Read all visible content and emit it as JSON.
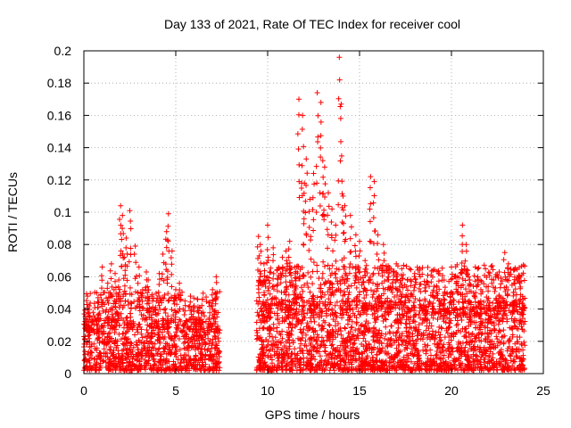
{
  "chart_data": {
    "type": "scatter",
    "title": "Day 133 of 2021, Rate Of TEC Index for receiver cool",
    "xlabel": "GPS time / hours",
    "ylabel": "ROTI / TECUs",
    "xlim": [
      0,
      25
    ],
    "ylim": [
      0,
      0.2
    ],
    "x_ticks": [
      0,
      5,
      10,
      15,
      20,
      25
    ],
    "y_ticks": [
      0,
      0.02,
      0.04,
      0.06,
      0.08,
      0.1,
      0.12,
      0.14,
      0.16,
      0.18,
      0.2
    ],
    "x_tick_labels": [
      "0",
      "5",
      "10",
      "15",
      "20",
      "25"
    ],
    "y_tick_labels": [
      "0",
      "0.02",
      "0.04",
      "0.06",
      "0.08",
      "0.1",
      "0.12",
      "0.14",
      "0.16",
      "0.18",
      "0.2"
    ],
    "grid": true,
    "marker": "plus",
    "marker_color": "#ff0000",
    "data_gap_hours": [
      7.4,
      9.4
    ],
    "x": [
      0.1,
      0.2,
      0.3,
      0.5,
      0.8,
      1.0,
      1.3,
      1.5,
      1.7,
      1.9,
      2.0,
      2.1,
      2.2,
      2.3,
      2.5,
      2.8,
      3.0,
      3.2,
      3.4,
      3.5,
      3.7,
      3.9,
      4.1,
      4.3,
      4.5,
      4.6,
      4.8,
      5.0,
      5.2,
      5.5,
      5.8,
      6.0,
      6.3,
      6.5,
      6.8,
      7.0,
      7.2,
      9.5,
      9.6,
      9.8,
      10.0,
      10.3,
      10.5,
      10.8,
      11.0,
      11.2,
      11.5,
      11.7,
      11.9,
      12.0,
      12.1,
      12.3,
      12.5,
      12.7,
      12.9,
      13.0,
      13.1,
      13.3,
      13.5,
      13.7,
      13.9,
      14.0,
      14.1,
      14.2,
      14.5,
      14.8,
      15.0,
      15.3,
      15.6,
      15.8,
      16.0,
      16.3,
      16.6,
      17.0,
      17.3,
      17.6,
      18.0,
      18.3,
      18.6,
      19.0,
      19.3,
      19.6,
      20.0,
      20.3,
      20.6,
      20.8,
      21.0,
      21.3,
      21.6,
      22.0,
      22.3,
      22.6,
      22.9,
      23.1,
      23.4,
      23.7,
      23.9
    ],
    "y": [
      0.034,
      0.048,
      0.042,
      0.038,
      0.044,
      0.066,
      0.056,
      0.068,
      0.062,
      0.058,
      0.104,
      0.098,
      0.072,
      0.084,
      0.101,
      0.079,
      0.066,
      0.052,
      0.063,
      0.058,
      0.048,
      0.041,
      0.062,
      0.074,
      0.088,
      0.099,
      0.076,
      0.052,
      0.056,
      0.045,
      0.048,
      0.042,
      0.041,
      0.038,
      0.044,
      0.052,
      0.06,
      0.085,
      0.08,
      0.068,
      0.092,
      0.078,
      0.064,
      0.072,
      0.076,
      0.082,
      0.062,
      0.17,
      0.16,
      0.118,
      0.133,
      0.108,
      0.124,
      0.174,
      0.168,
      0.132,
      0.128,
      0.112,
      0.102,
      0.092,
      0.196,
      0.167,
      0.11,
      0.104,
      0.098,
      0.086,
      0.082,
      0.07,
      0.122,
      0.119,
      0.086,
      0.08,
      0.062,
      0.068,
      0.065,
      0.058,
      0.062,
      0.06,
      0.055,
      0.064,
      0.062,
      0.058,
      0.066,
      0.06,
      0.092,
      0.08,
      0.058,
      0.066,
      0.052,
      0.054,
      0.058,
      0.063,
      0.075,
      0.068,
      0.064,
      0.06,
      0.046
    ],
    "dense_band": {
      "segments": [
        [
          0,
          7.4
        ],
        [
          9.4,
          24.0
        ]
      ],
      "typical_max": [
        0.034,
        0.045
      ],
      "min": 0.002
    }
  }
}
